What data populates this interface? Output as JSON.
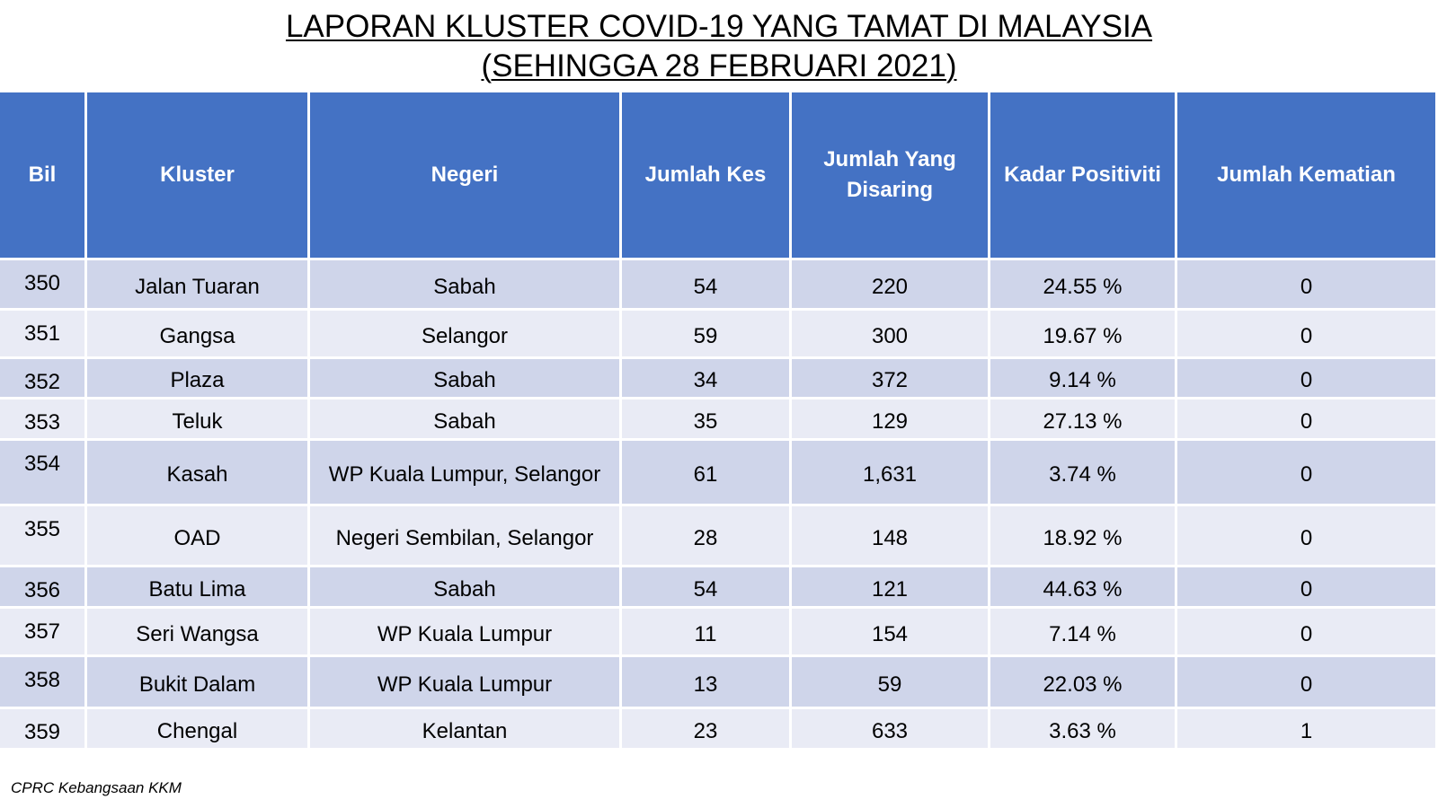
{
  "title": {
    "line1": "LAPORAN KLUSTER COVID-19 YANG TAMAT DI MALAYSIA",
    "line2": "(SEHINGGA 28 FEBRUARI 2021)"
  },
  "table": {
    "headers": {
      "bil": "Bil",
      "kluster": "Kluster",
      "negeri": "Negeri",
      "jumlah_kes": "Jumlah Kes",
      "jumlah_disaring": "Jumlah Yang Disaring",
      "kadar_positiviti": "Kadar Positiviti",
      "jumlah_kematian": "Jumlah Kematian"
    },
    "rows": [
      {
        "bil": "350",
        "kluster": "Jalan Tuaran",
        "negeri": "Sabah",
        "kes": "54",
        "disaring": "220",
        "positiviti": "24.55 %",
        "kematian": "0"
      },
      {
        "bil": "351",
        "kluster": "Gangsa",
        "negeri": "Selangor",
        "kes": "59",
        "disaring": "300",
        "positiviti": "19.67 %",
        "kematian": "0"
      },
      {
        "bil": "352",
        "kluster": "Plaza",
        "negeri": "Sabah",
        "kes": "34",
        "disaring": "372",
        "positiviti": "9.14 %",
        "kematian": "0"
      },
      {
        "bil": "353",
        "kluster": "Teluk",
        "negeri": "Sabah",
        "kes": "35",
        "disaring": "129",
        "positiviti": "27.13 %",
        "kematian": "0"
      },
      {
        "bil": "354",
        "kluster": "Kasah",
        "negeri": "WP Kuala Lumpur, Selangor",
        "kes": "61",
        "disaring": "1,631",
        "positiviti": "3.74 %",
        "kematian": "0"
      },
      {
        "bil": "355",
        "kluster": "OAD",
        "negeri": "Negeri Sembilan, Selangor",
        "kes": "28",
        "disaring": "148",
        "positiviti": "18.92 %",
        "kematian": "0"
      },
      {
        "bil": "356",
        "kluster": "Batu Lima",
        "negeri": "Sabah",
        "kes": "54",
        "disaring": "121",
        "positiviti": "44.63 %",
        "kematian": "0"
      },
      {
        "bil": "357",
        "kluster": "Seri Wangsa",
        "negeri": "WP Kuala Lumpur",
        "kes": "11",
        "disaring": "154",
        "positiviti": "7.14 %",
        "kematian": "0"
      },
      {
        "bil": "358",
        "kluster": "Bukit Dalam",
        "negeri": "WP Kuala Lumpur",
        "kes": "13",
        "disaring": "59",
        "positiviti": "22.03 %",
        "kematian": "0"
      },
      {
        "bil": "359",
        "kluster": "Chengal",
        "negeri": "Kelantan",
        "kes": "23",
        "disaring": "633",
        "positiviti": "3.63 %",
        "kematian": "1"
      }
    ]
  },
  "source": "CPRC Kebangsaan KKM",
  "colors": {
    "header_bg": "#4472c4",
    "row_odd_bg": "#cfd5ea",
    "row_even_bg": "#e9ebf5"
  }
}
